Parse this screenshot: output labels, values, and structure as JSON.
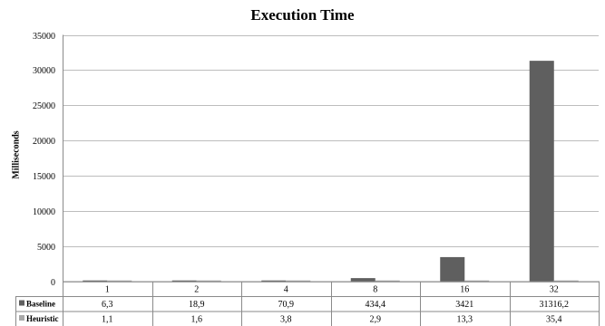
{
  "chart_data": {
    "type": "bar",
    "title": "Execution Time",
    "xlabel": "",
    "ylabel": "Milliseconds",
    "ylim": [
      0,
      35000
    ],
    "yticks": [
      0,
      5000,
      10000,
      15000,
      20000,
      25000,
      30000,
      35000
    ],
    "grid": true,
    "legend_position": "bottom-left, inside data table",
    "categories": [
      "1",
      "2",
      "4",
      "8",
      "16",
      "32"
    ],
    "series": [
      {
        "name": "Baseline",
        "color": "#5f5f5f",
        "values": [
          6.3,
          18.9,
          70.9,
          434.4,
          3421,
          31316.2
        ],
        "labels": [
          "6,3",
          "18,9",
          "70,9",
          "434,4",
          "3421",
          "31316,2"
        ]
      },
      {
        "name": "Heuristic",
        "color": "#a8a8a8",
        "values": [
          1.1,
          1.6,
          3.8,
          2.9,
          13.3,
          35.4
        ],
        "labels": [
          "1,1",
          "1,6",
          "3,8",
          "2,9",
          "13,3",
          "35,4"
        ]
      }
    ]
  }
}
